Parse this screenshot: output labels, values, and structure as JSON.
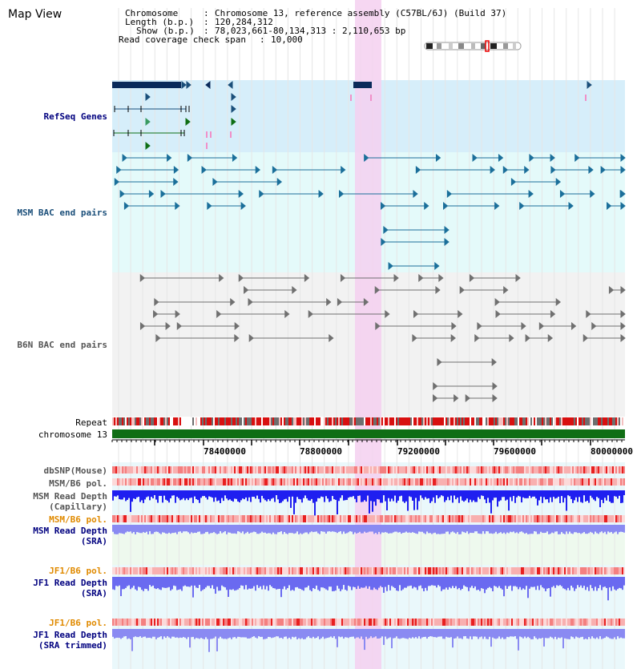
{
  "page_title": "Map View",
  "info": {
    "chromosome_key": "Chromosome",
    "chromosome_value": "Chromosome 13, reference assembly (C57BL/6J) (Build 37)",
    "length_key": "Length (b.p.)",
    "length_value": "120,284,312",
    "show_key": "Show (b.p.)",
    "show_value": "78,023,661-80,134,313 : 2,110,653 bp",
    "span_key": "Read coverage check span",
    "span_value": "10,000"
  },
  "tracks": {
    "refseq": "RefSeq Genes",
    "msm_bac": "MSM BAC end pairs",
    "b6n_bac": "B6N BAC end pairs",
    "repeat": "Repeat",
    "chromosome": "chromosome 13",
    "dbsnp": "dbSNP(Mouse)",
    "msm_b6_pol_1": "MSM/B6 pol.",
    "msm_depth_cap_1": "MSM Read Depth",
    "msm_depth_cap_2": "(Capillary)",
    "msm_b6_pol_2": "MSM/B6 pol.",
    "msm_depth_sra_1": "MSM Read Depth",
    "msm_depth_sra_2": "(SRA)",
    "jf1_b6_pol_1": "JF1/B6 pol.",
    "jf1_depth_sra_1": "JF1 Read Depth",
    "jf1_depth_sra_2": "(SRA)",
    "jf1_b6_pol_2": "JF1/B6 pol.",
    "jf1_depth_trim_1": "JF1 Read Depth",
    "jf1_depth_trim_2": "(SRA trimmed)"
  },
  "axis": {
    "ticks": [
      "78400000",
      "78800000",
      "79200000",
      "79600000",
      "80000000"
    ]
  },
  "colors": {
    "refseq_bg": "#d6eefa",
    "msm_bg": "#e4fafa",
    "b6n_bg": "#f2f2f2",
    "highlight": "#f5d0f0",
    "chrom_bar": "#0f6e14",
    "label_blue": "#00007f",
    "label_orange": "#e08a00",
    "label_gray": "#555555",
    "depth_blue": "#1f1ff0",
    "depth_light": "#8a8af2"
  },
  "icons": [
    "chromosome-ideogram"
  ]
}
